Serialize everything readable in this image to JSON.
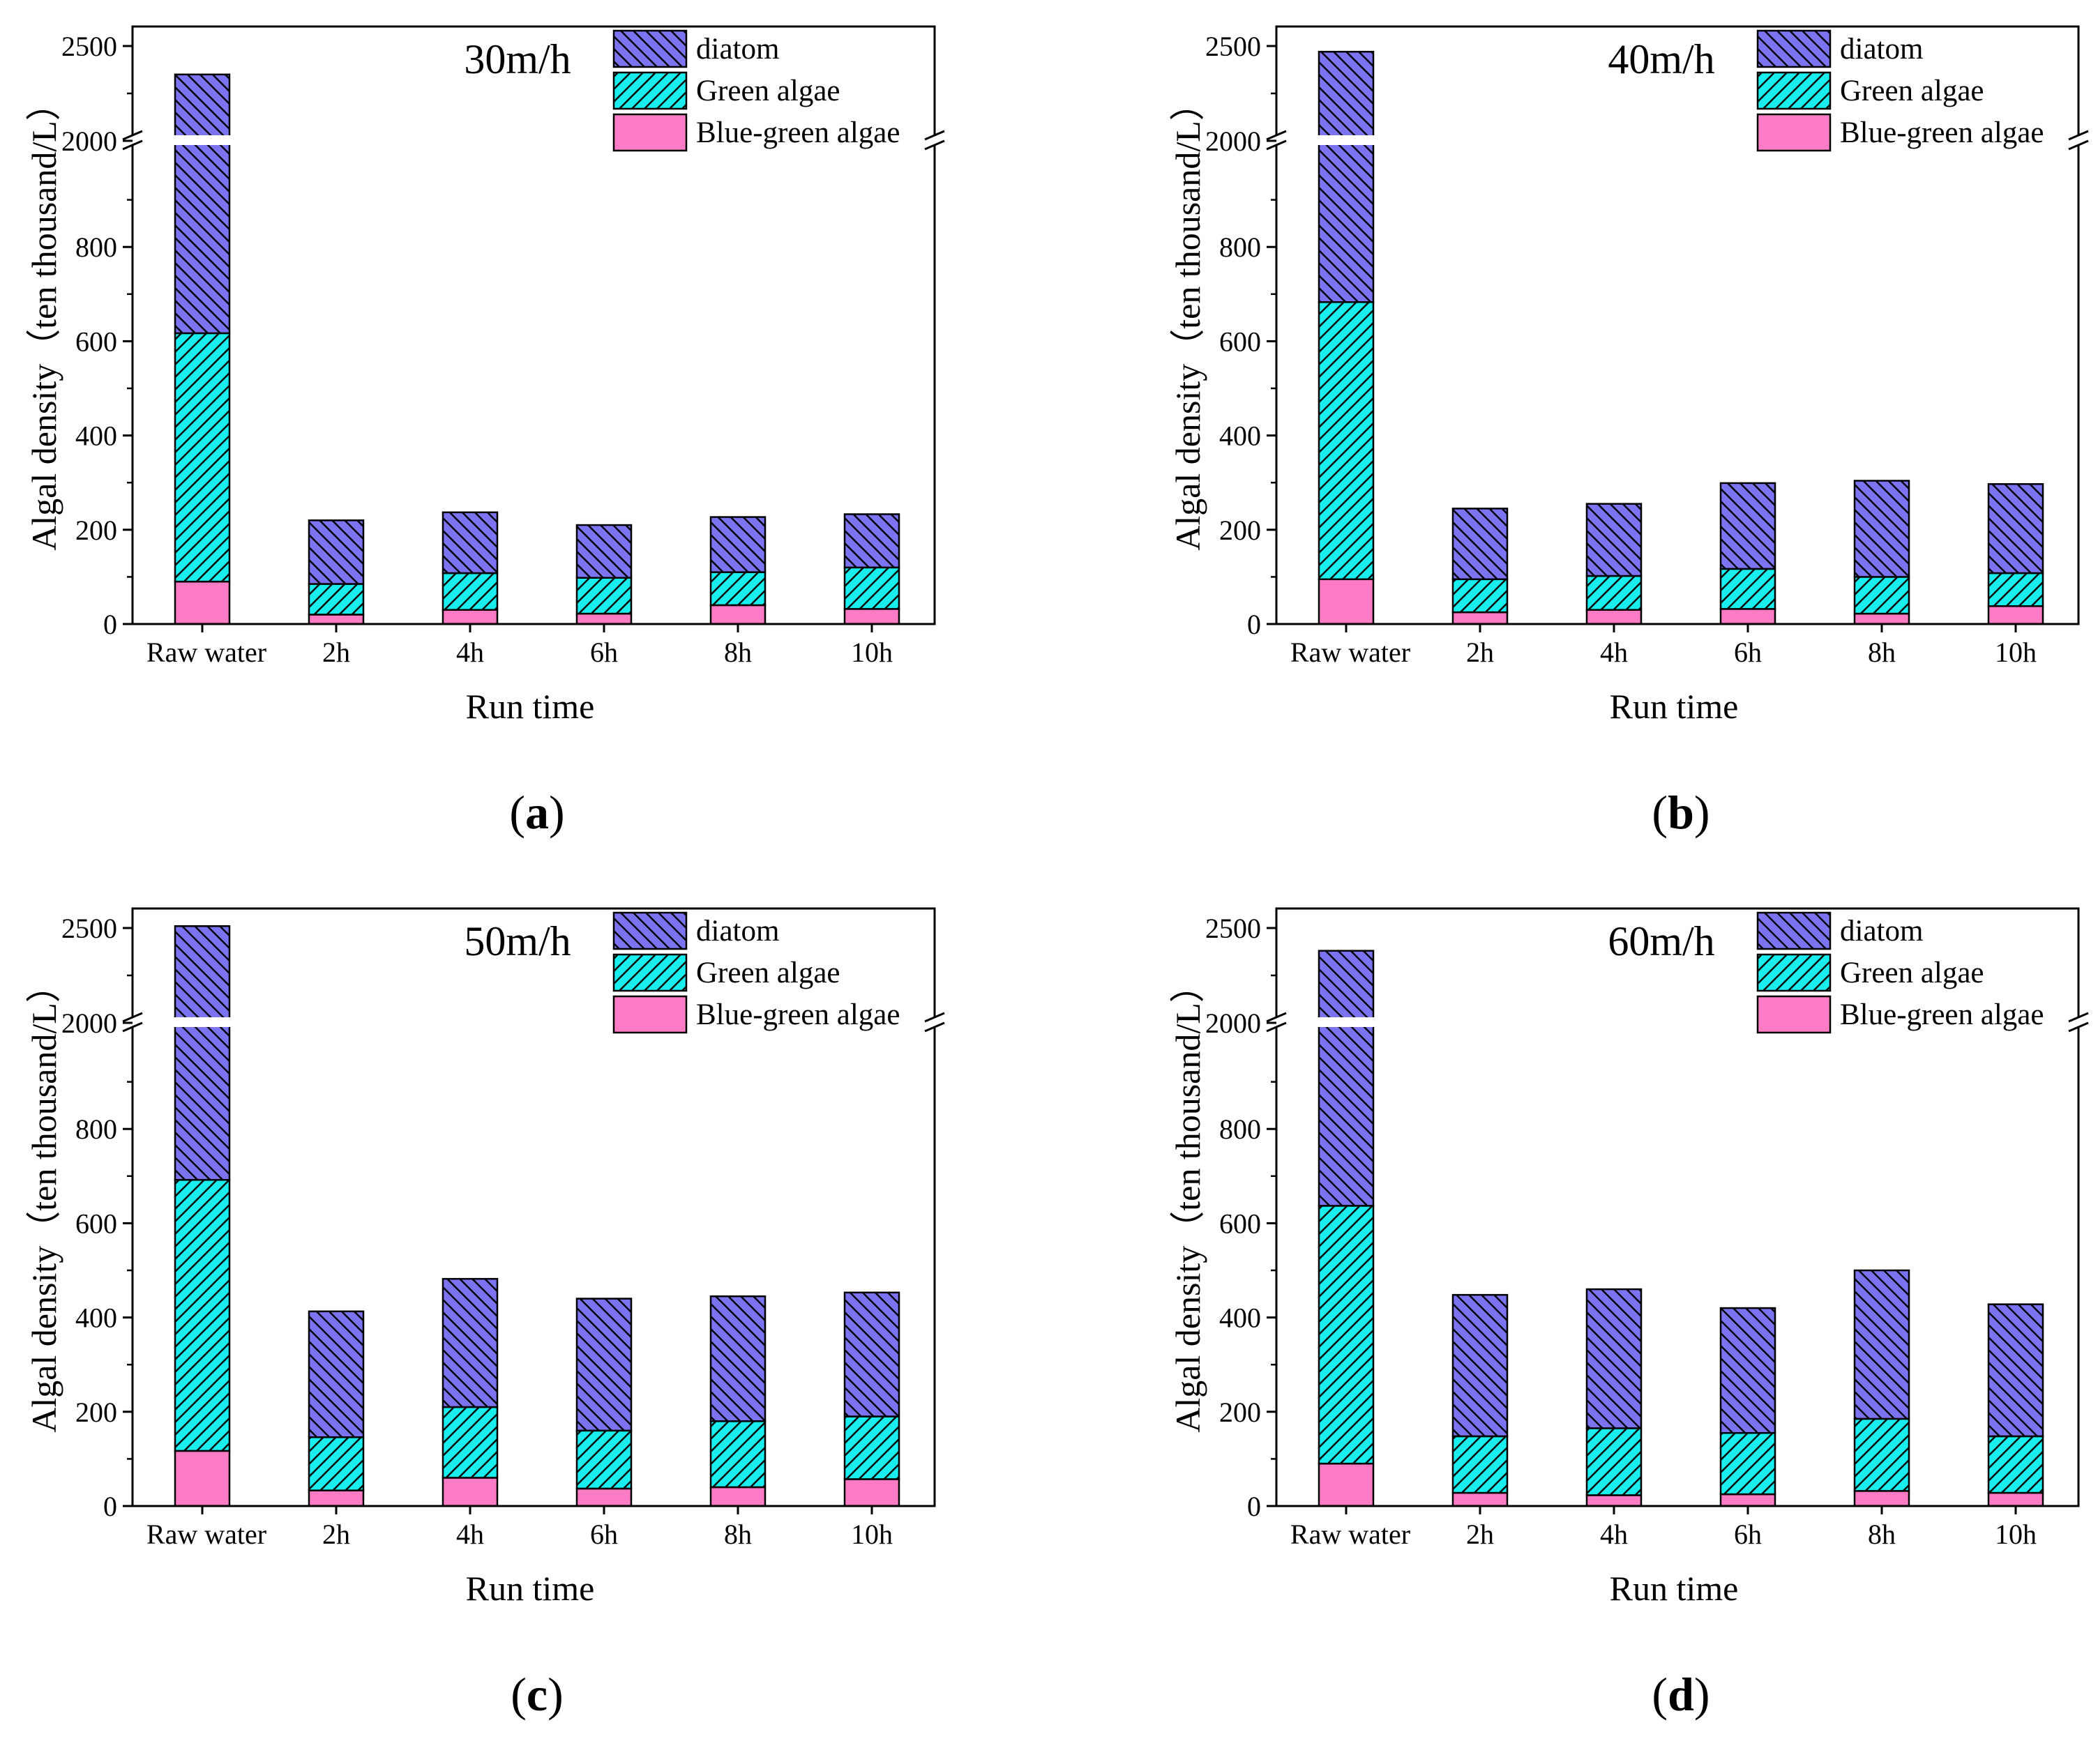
{
  "figure": {
    "colors": {
      "diatom": "#7b73f0",
      "green": "#19eded",
      "bluegreen": "#fb7cc4",
      "hatch": "#000000"
    },
    "y_ticks_lower": [
      "0",
      "200",
      "400",
      "600",
      "800"
    ],
    "y_ticks_upper": [
      "2000",
      "2500"
    ]
  },
  "chart_data": [
    {
      "type": "bar",
      "stacked": true,
      "panel_label": "a",
      "title": "30m/h",
      "xlabel": "Run time",
      "ylabel": "Algal density（ten thousand/L）",
      "categories": [
        "Raw water",
        "2h",
        "4h",
        "6h",
        "8h",
        "10h"
      ],
      "axis_break": [
        1000,
        2000
      ],
      "ylim": [
        0,
        2600
      ],
      "series": [
        {
          "name": "Blue-green algae",
          "key": "bluegreen",
          "values": [
            90,
            20,
            30,
            22,
            40,
            32
          ]
        },
        {
          "name": "Green algae",
          "key": "green",
          "values": [
            527,
            65,
            78,
            76,
            70,
            88
          ]
        },
        {
          "name": "diatom",
          "key": "diatom",
          "values": [
            1733,
            135,
            129,
            112,
            117,
            113
          ]
        }
      ],
      "totals": [
        2350,
        220,
        237,
        210,
        227,
        233
      ]
    },
    {
      "type": "bar",
      "stacked": true,
      "panel_label": "b",
      "title": "40m/h",
      "xlabel": "Run time",
      "ylabel": "Algal density（ten thousand/L）",
      "categories": [
        "Raw water",
        "2h",
        "4h",
        "6h",
        "8h",
        "10h"
      ],
      "axis_break": [
        1000,
        2000
      ],
      "ylim": [
        0,
        2600
      ],
      "series": [
        {
          "name": "Blue-green algae",
          "key": "bluegreen",
          "values": [
            95,
            25,
            30,
            32,
            22,
            38
          ]
        },
        {
          "name": "Green algae",
          "key": "green",
          "values": [
            588,
            70,
            72,
            85,
            78,
            70
          ]
        },
        {
          "name": "diatom",
          "key": "diatom",
          "values": [
            1787,
            150,
            153,
            182,
            204,
            189
          ]
        }
      ],
      "totals": [
        2470,
        245,
        255,
        299,
        304,
        297
      ]
    },
    {
      "type": "bar",
      "stacked": true,
      "panel_label": "c",
      "title": "50m/h",
      "xlabel": "Run time",
      "ylabel": "Algal density（ten thousand/L）",
      "categories": [
        "Raw water",
        "2h",
        "4h",
        "6h",
        "8h",
        "10h"
      ],
      "axis_break": [
        1000,
        2000
      ],
      "ylim": [
        0,
        2600
      ],
      "series": [
        {
          "name": "Blue-green algae",
          "key": "bluegreen",
          "values": [
            117,
            33,
            60,
            37,
            40,
            57
          ]
        },
        {
          "name": "Green algae",
          "key": "green",
          "values": [
            575,
            113,
            150,
            123,
            140,
            133
          ]
        },
        {
          "name": "diatom",
          "key": "diatom",
          "values": [
            1818,
            267,
            272,
            280,
            265,
            263
          ]
        }
      ],
      "totals": [
        2510,
        413,
        482,
        440,
        445,
        453
      ]
    },
    {
      "type": "bar",
      "stacked": true,
      "panel_label": "d",
      "title": "60m/h",
      "xlabel": "Run time",
      "ylabel": "Algal density（ten thousand/L）",
      "categories": [
        "Raw water",
        "2h",
        "4h",
        "6h",
        "8h",
        "10h"
      ],
      "axis_break": [
        1000,
        2000
      ],
      "ylim": [
        0,
        2600
      ],
      "series": [
        {
          "name": "Blue-green algae",
          "key": "bluegreen",
          "values": [
            90,
            28,
            23,
            25,
            32,
            28
          ]
        },
        {
          "name": "Green algae",
          "key": "green",
          "values": [
            547,
            120,
            142,
            130,
            153,
            120
          ]
        },
        {
          "name": "diatom",
          "key": "diatom",
          "values": [
            1743,
            300,
            295,
            265,
            315,
            280
          ]
        }
      ],
      "totals": [
        2380,
        448,
        460,
        420,
        500,
        428
      ]
    }
  ]
}
